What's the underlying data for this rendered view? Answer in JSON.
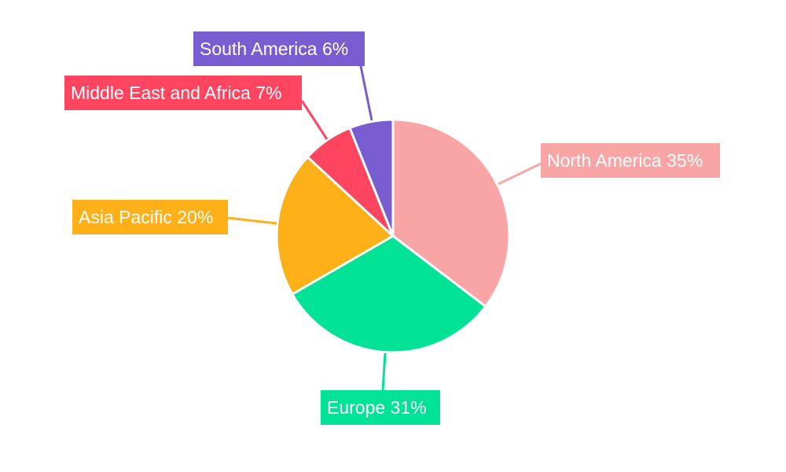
{
  "chart_data": {
    "type": "pie",
    "start": "top, clockwise",
    "legend": "none",
    "slices": [
      {
        "name": "North America",
        "value": 35,
        "label": "North America 35%",
        "color": "#F9A5A6"
      },
      {
        "name": "Europe",
        "value": 31,
        "label": "Europe 31%",
        "color": "#00E396"
      },
      {
        "name": "Asia Pacific",
        "value": 20,
        "label": "Asia Pacific 20%",
        "color": "#FEB019"
      },
      {
        "name": "Middle East and Africa",
        "value": 7,
        "label": "Middle East and Africa 7%",
        "color": "#FF4560"
      },
      {
        "name": "South America",
        "value": 6,
        "label": "South America 6%",
        "color": "#775DD0"
      }
    ]
  }
}
